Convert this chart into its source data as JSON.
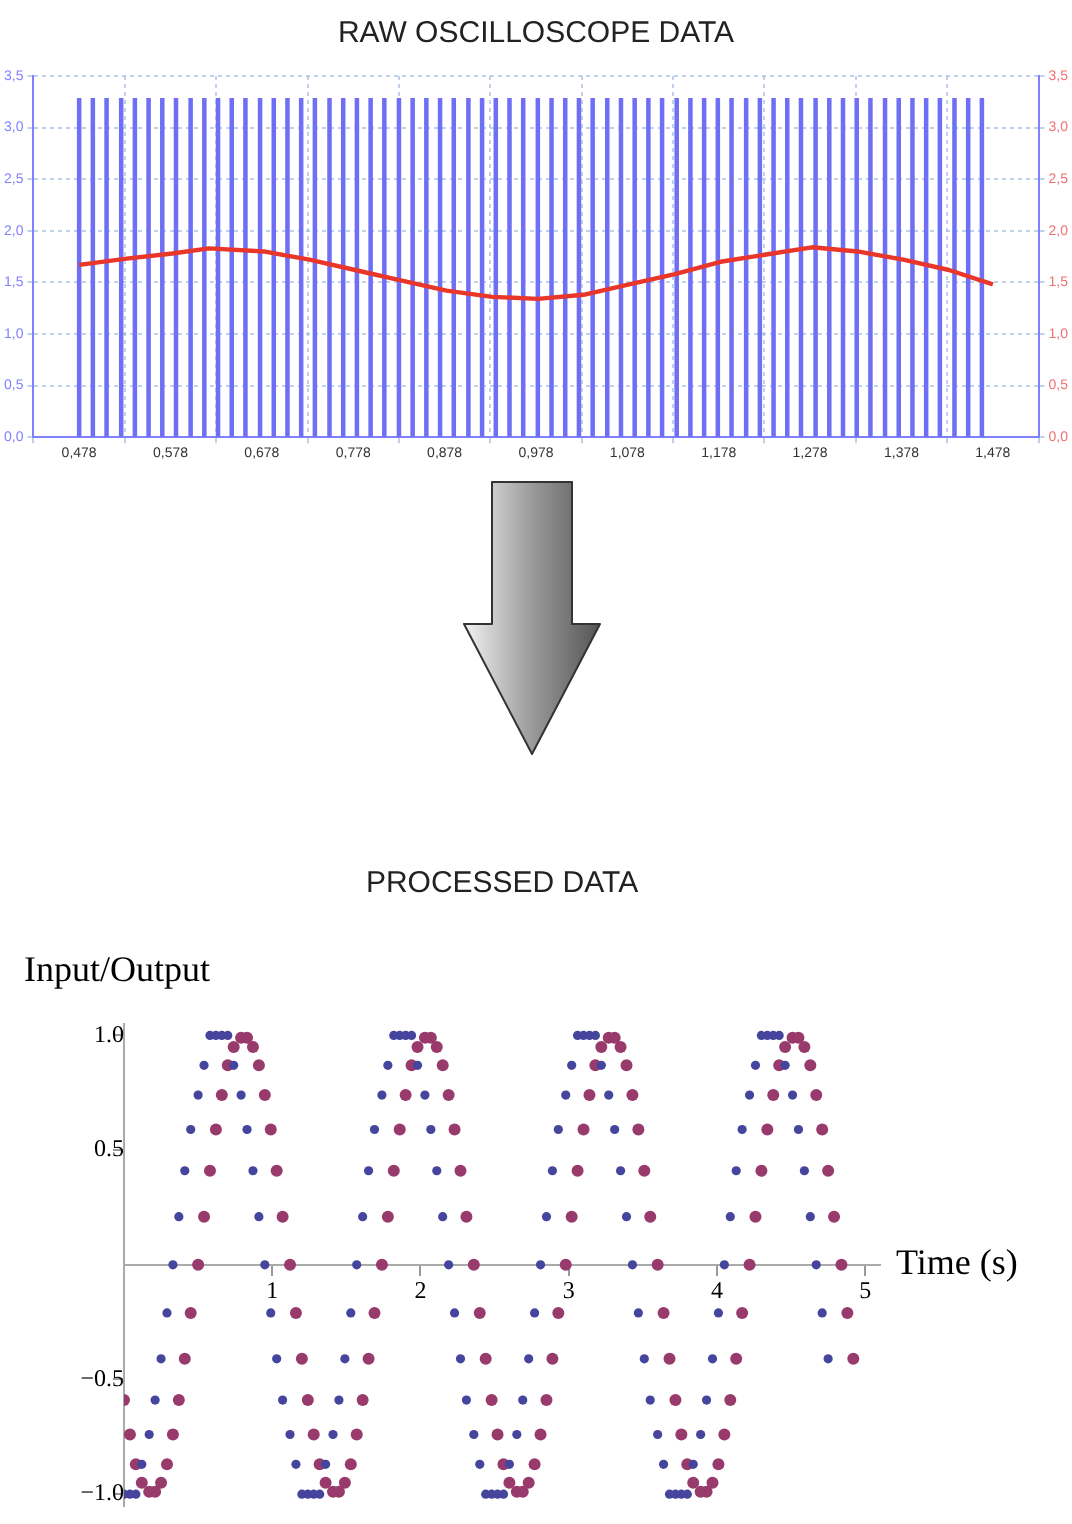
{
  "chart_data": [
    {
      "type": "line",
      "title": "RAW OSCILLOSCOPE DATA",
      "marker": "none",
      "grid": true,
      "xlim": [
        0.478,
        1.478
      ],
      "xticks": [
        {
          "value": 0.478,
          "label": "0,478"
        },
        {
          "value": 0.578,
          "label": "0,578"
        },
        {
          "value": 0.678,
          "label": "0,678"
        },
        {
          "value": 0.778,
          "label": "0,778"
        },
        {
          "value": 0.878,
          "label": "0,878"
        },
        {
          "value": 0.978,
          "label": "0,978"
        },
        {
          "value": 1.078,
          "label": "1,078"
        },
        {
          "value": 1.178,
          "label": "1,178"
        },
        {
          "value": 1.278,
          "label": "1,278"
        },
        {
          "value": 1.378,
          "label": "1,378"
        },
        {
          "value": 1.478,
          "label": "1,478"
        }
      ],
      "ylim": [
        0,
        3.5
      ],
      "yticks": [
        {
          "value": 0,
          "label": "0,0"
        },
        {
          "value": 0.5,
          "label": "0,5"
        },
        {
          "value": 1,
          "label": "1,0"
        },
        {
          "value": 1.5,
          "label": "1,5"
        },
        {
          "value": 2,
          "label": "2,0"
        },
        {
          "value": 2.5,
          "label": "2,5"
        },
        {
          "value": 3,
          "label": "3,0"
        },
        {
          "value": 3.5,
          "label": "3,5"
        }
      ],
      "y2lim": [
        0,
        3.5
      ],
      "y2ticks": [
        {
          "value": 0,
          "label": "0,0"
        },
        {
          "value": 0.5,
          "label": "0,5"
        },
        {
          "value": 1,
          "label": "1,0"
        },
        {
          "value": 1.5,
          "label": "1,5"
        },
        {
          "value": 2,
          "label": "2,0"
        },
        {
          "value": 2.5,
          "label": "2,5"
        },
        {
          "value": 3,
          "label": "3,0"
        },
        {
          "value": 3.5,
          "label": "3,5"
        }
      ],
      "series": [
        {
          "type": "bar",
          "color": "#6f6ff5",
          "x": [
            0.478,
            0.493,
            0.508,
            0.524,
            0.539,
            0.554,
            0.569,
            0.584,
            0.6,
            0.615,
            0.63,
            0.645,
            0.66,
            0.676,
            0.691,
            0.706,
            0.721,
            0.736,
            0.752,
            0.767,
            0.782,
            0.797,
            0.812,
            0.828,
            0.843,
            0.858,
            0.873,
            0.888,
            0.904,
            0.919,
            0.934,
            0.949,
            0.964,
            0.98,
            0.995,
            1.01,
            1.025,
            1.04,
            1.056,
            1.071,
            1.086,
            1.101,
            1.116,
            1.132,
            1.147,
            1.162,
            1.177,
            1.192,
            1.208,
            1.223,
            1.238,
            1.253,
            1.268,
            1.284,
            1.299,
            1.314,
            1.329,
            1.344,
            1.36,
            1.375,
            1.39,
            1.405,
            1.42,
            1.436,
            1.451,
            1.466
          ],
          "values": [
            3.28,
            3.28,
            3.28,
            3.28,
            3.28,
            3.28,
            3.28,
            3.28,
            3.28,
            3.28,
            3.28,
            3.28,
            3.28,
            3.28,
            3.28,
            3.28,
            3.28,
            3.28,
            3.28,
            3.28,
            3.28,
            3.28,
            3.28,
            3.28,
            3.28,
            3.28,
            3.28,
            3.28,
            3.28,
            3.28,
            3.28,
            3.28,
            3.28,
            3.28,
            3.28,
            3.28,
            3.28,
            3.28,
            3.28,
            3.28,
            3.28,
            3.28,
            3.28,
            3.28,
            3.28,
            3.28,
            3.28,
            3.28,
            3.28,
            3.28,
            3.28,
            3.28,
            3.28,
            3.28,
            3.28,
            3.28,
            3.28,
            3.28,
            3.28,
            3.28,
            3.28,
            3.28,
            3.28,
            3.28,
            3.28,
            3.28
          ]
        },
        {
          "type": "line",
          "color": "#e8362a",
          "x": [
            0.478,
            0.53,
            0.58,
            0.62,
            0.68,
            0.73,
            0.78,
            0.83,
            0.88,
            0.93,
            0.98,
            1.03,
            1.08,
            1.13,
            1.18,
            1.23,
            1.28,
            1.33,
            1.38,
            1.43,
            1.478
          ],
          "values": [
            1.67,
            1.73,
            1.78,
            1.83,
            1.8,
            1.72,
            1.62,
            1.52,
            1.42,
            1.36,
            1.34,
            1.38,
            1.48,
            1.58,
            1.7,
            1.77,
            1.84,
            1.8,
            1.72,
            1.62,
            1.48
          ]
        }
      ]
    },
    {
      "type": "scatter",
      "title": "PROCESSED DATA",
      "xlabel": "Time (s)",
      "ylabel": "Input/Output",
      "marker": "circle",
      "xlim": [
        0,
        5.1
      ],
      "xticks": [
        1,
        2,
        3,
        4,
        5
      ],
      "ylim": [
        -1.05,
        1.05
      ],
      "yticks": [
        {
          "value": -1,
          "label": "−1.0"
        },
        {
          "value": -0.5,
          "label": "−0.5"
        },
        {
          "value": 0.5,
          "label": "0.5"
        },
        {
          "value": 1,
          "label": "1.0"
        }
      ],
      "x": [
        0,
        0.04,
        0.08,
        0.12,
        0.17,
        0.21,
        0.25,
        0.29,
        0.33,
        0.37,
        0.41,
        0.45,
        0.5,
        0.54,
        0.58,
        0.62,
        0.66,
        0.7,
        0.74,
        0.79,
        0.83,
        0.87,
        0.91,
        0.95,
        0.99,
        1.03,
        1.07,
        1.12,
        1.16,
        1.2,
        1.24,
        1.28,
        1.32,
        1.36,
        1.41,
        1.45,
        1.49,
        1.53,
        1.57,
        1.61,
        1.65,
        1.69,
        1.74,
        1.78,
        1.82,
        1.86,
        1.9,
        1.94,
        1.98,
        2.03,
        2.07,
        2.11,
        2.15,
        2.19,
        2.23,
        2.27,
        2.31,
        2.36,
        2.4,
        2.44,
        2.48,
        2.52,
        2.56,
        2.6,
        2.65,
        2.69,
        2.73,
        2.77,
        2.81,
        2.85,
        2.89,
        2.93,
        2.98,
        3.02,
        3.06,
        3.1,
        3.14,
        3.18,
        3.22,
        3.27,
        3.31,
        3.35,
        3.39,
        3.43,
        3.47,
        3.51,
        3.55,
        3.6,
        3.64,
        3.68,
        3.72,
        3.76,
        3.8,
        3.84,
        3.89,
        3.93,
        3.97,
        4.01,
        4.05,
        4.09,
        4.13,
        4.17,
        4.22,
        4.26,
        4.3,
        4.34,
        4.38,
        4.42,
        4.46,
        4.51,
        4.55,
        4.59,
        4.63,
        4.67,
        4.71,
        4.75,
        4.79,
        4.84,
        4.88,
        4.92
      ],
      "series": [
        {
          "color": "#45459d",
          "values": [
            -1,
            -1,
            -1,
            -0.87,
            -0.74,
            -0.59,
            -0.41,
            -0.21,
            0,
            0.21,
            0.41,
            0.59,
            0.74,
            0.87,
            1,
            1,
            1,
            1,
            0.87,
            0.74,
            0.59,
            0.41,
            0.21,
            0,
            -0.21,
            -0.41,
            -0.59,
            -0.74,
            -0.87,
            -1,
            -1,
            -1,
            -1,
            -0.87,
            -0.74,
            -0.59,
            -0.41,
            -0.21,
            0,
            0.21,
            0.41,
            0.59,
            0.74,
            0.87,
            1,
            1,
            1,
            1,
            0.87,
            0.74,
            0.59,
            0.41,
            0.21,
            0,
            -0.21,
            -0.41,
            -0.59,
            -0.74,
            -0.87,
            -1,
            -1,
            -1,
            -1,
            -0.87,
            -0.74,
            -0.59,
            -0.41,
            -0.21,
            0,
            0.21,
            0.41,
            0.59,
            0.74,
            0.87,
            1,
            1,
            1,
            1,
            0.87,
            0.74,
            0.59,
            0.41,
            0.21,
            0,
            -0.21,
            -0.41,
            -0.59,
            -0.74,
            -0.87,
            -1,
            -1,
            -1,
            -1,
            -0.87,
            -0.74,
            -0.59,
            -0.41,
            -0.21,
            0,
            0.21,
            0.41,
            0.59,
            0.74,
            0.87,
            1,
            1,
            1,
            1,
            0.87,
            0.74,
            0.59,
            0.41,
            0.21,
            0,
            -0.21,
            -0.41,
            null,
            null,
            null,
            null
          ]
        },
        {
          "color": "#993a6c",
          "values": [
            -0.59,
            -0.74,
            -0.87,
            -0.95,
            -0.99,
            -0.99,
            -0.95,
            -0.87,
            -0.74,
            -0.59,
            -0.41,
            -0.21,
            0,
            0.21,
            0.41,
            0.59,
            0.74,
            0.87,
            0.95,
            0.99,
            0.99,
            0.95,
            0.87,
            0.74,
            0.59,
            0.41,
            0.21,
            0,
            -0.21,
            -0.41,
            -0.59,
            -0.74,
            -0.87,
            -0.95,
            -0.99,
            -0.99,
            -0.95,
            -0.87,
            -0.74,
            -0.59,
            -0.41,
            -0.21,
            0,
            0.21,
            0.41,
            0.59,
            0.74,
            0.87,
            0.95,
            0.99,
            0.99,
            0.95,
            0.87,
            0.74,
            0.59,
            0.41,
            0.21,
            0,
            -0.21,
            -0.41,
            -0.59,
            -0.74,
            -0.87,
            -0.95,
            -0.99,
            -0.99,
            -0.95,
            -0.87,
            -0.74,
            -0.59,
            -0.41,
            -0.21,
            0,
            0.21,
            0.41,
            0.59,
            0.74,
            0.87,
            0.95,
            0.99,
            0.99,
            0.95,
            0.87,
            0.74,
            0.59,
            0.41,
            0.21,
            0,
            -0.21,
            -0.41,
            -0.59,
            -0.74,
            -0.87,
            -0.95,
            -0.99,
            -0.99,
            -0.95,
            -0.87,
            -0.74,
            -0.59,
            -0.41,
            -0.21,
            0,
            0.21,
            0.41,
            0.59,
            0.74,
            0.87,
            0.95,
            0.99,
            0.99,
            0.95,
            0.87,
            0.74,
            0.59,
            0.41,
            0.21,
            0,
            -0.21,
            -0.41
          ]
        }
      ]
    }
  ]
}
